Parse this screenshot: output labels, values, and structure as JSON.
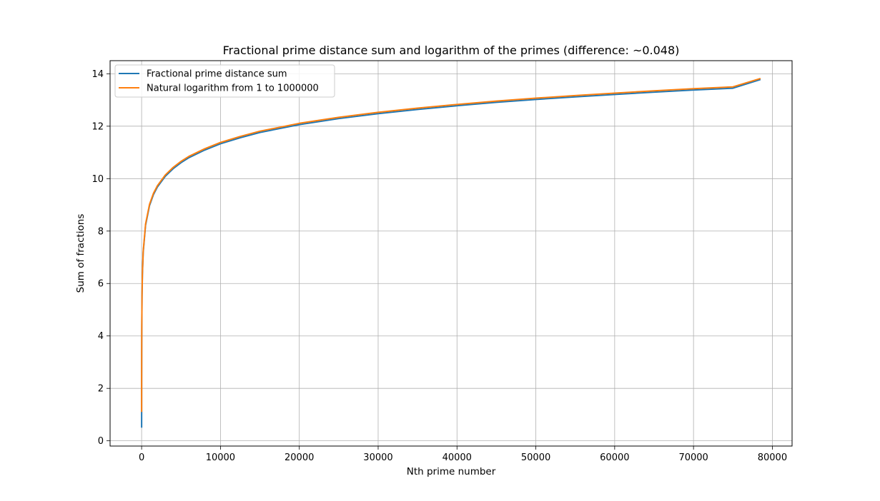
{
  "chart_data": {
    "type": "line",
    "title": "Fractional prime distance sum and logarithm of the primes (difference: ~0.048)",
    "xlabel": "Nth prime number",
    "ylabel": "Sum of fractions",
    "xlim": [
      -4000,
      82500
    ],
    "ylim": [
      -0.2,
      14.5
    ],
    "xticks": [
      0,
      10000,
      20000,
      30000,
      40000,
      50000,
      60000,
      70000,
      80000
    ],
    "yticks": [
      0,
      2,
      4,
      6,
      8,
      10,
      12,
      14
    ],
    "grid": true,
    "legend_position": "top-left",
    "series": [
      {
        "name": "Fractional prime distance sum",
        "color": "#1f77b4",
        "x": [
          1,
          2,
          4,
          10,
          20,
          50,
          100,
          200,
          500,
          1000,
          1500,
          2000,
          3000,
          4000,
          5000,
          6000,
          8000,
          10000,
          12500,
          15000,
          20000,
          25000,
          30000,
          35000,
          40000,
          45000,
          50000,
          55000,
          60000,
          65000,
          70000,
          75000,
          78498
        ],
        "y": [
          0.5,
          1.05,
          2.2,
          3.33,
          4.28,
          5.5,
          6.34,
          7.18,
          8.22,
          8.97,
          9.39,
          9.68,
          10.09,
          10.38,
          10.61,
          10.8,
          11.09,
          11.33,
          11.56,
          11.76,
          12.06,
          12.29,
          12.48,
          12.64,
          12.78,
          12.91,
          13.02,
          13.12,
          13.21,
          13.3,
          13.38,
          13.45,
          13.78
        ]
      },
      {
        "name": "Natural logarithm from 1 to 1000000",
        "color": "#ff7f0e",
        "x": [
          1,
          2,
          4,
          10,
          20,
          50,
          100,
          200,
          500,
          1000,
          1500,
          2000,
          3000,
          4000,
          5000,
          6000,
          8000,
          10000,
          12500,
          15000,
          20000,
          25000,
          30000,
          35000,
          40000,
          45000,
          50000,
          55000,
          60000,
          65000,
          70000,
          75000,
          78498
        ],
        "y": [
          1.1,
          1.6,
          2.3,
          3.35,
          4.32,
          5.55,
          6.39,
          7.23,
          8.27,
          9.02,
          9.44,
          9.73,
          10.14,
          10.43,
          10.66,
          10.85,
          11.14,
          11.38,
          11.61,
          11.81,
          12.11,
          12.34,
          12.53,
          12.69,
          12.83,
          12.96,
          13.07,
          13.17,
          13.26,
          13.35,
          13.43,
          13.5,
          13.82
        ]
      }
    ]
  }
}
